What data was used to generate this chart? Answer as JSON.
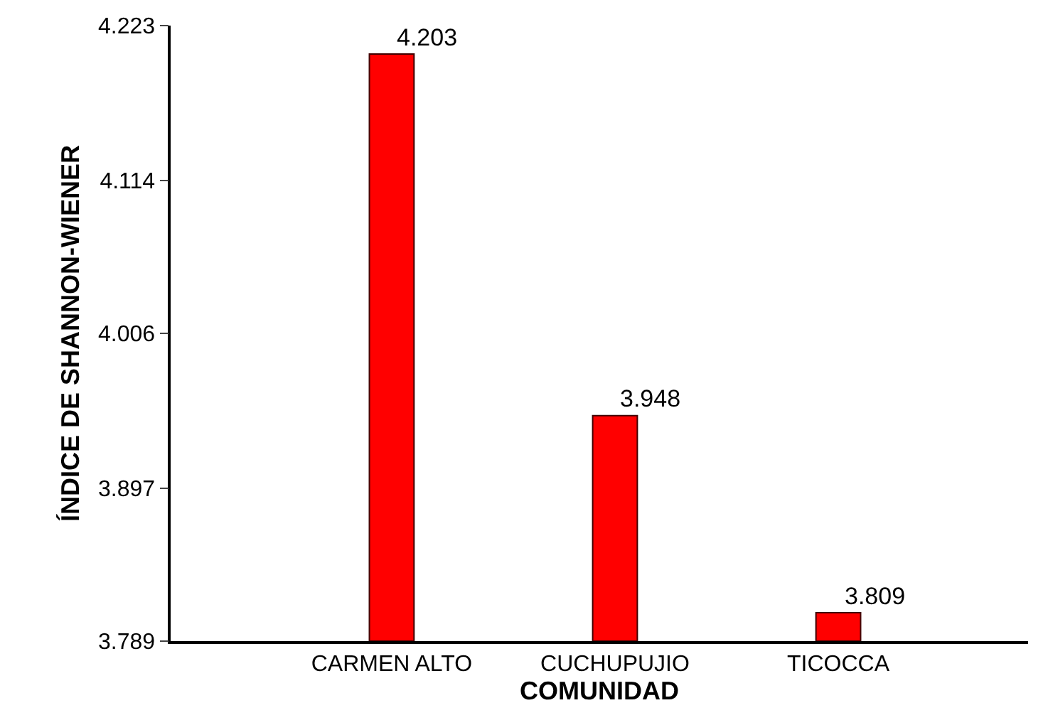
{
  "chart_data": {
    "type": "bar",
    "xlabel": "COMUNIDAD",
    "ylabel": "ÍNDICE DE SHANNON-WIENER",
    "categories": [
      "CARMEN ALTO",
      "CUCHUPUJIO",
      "TICOCCA"
    ],
    "values": [
      4.203,
      3.948,
      3.809
    ],
    "color": "#ff0000",
    "ylim": [
      3.789,
      4.223
    ],
    "yticks": [
      3.789,
      3.897,
      4.006,
      4.114,
      4.223
    ],
    "data_labels": true
  }
}
